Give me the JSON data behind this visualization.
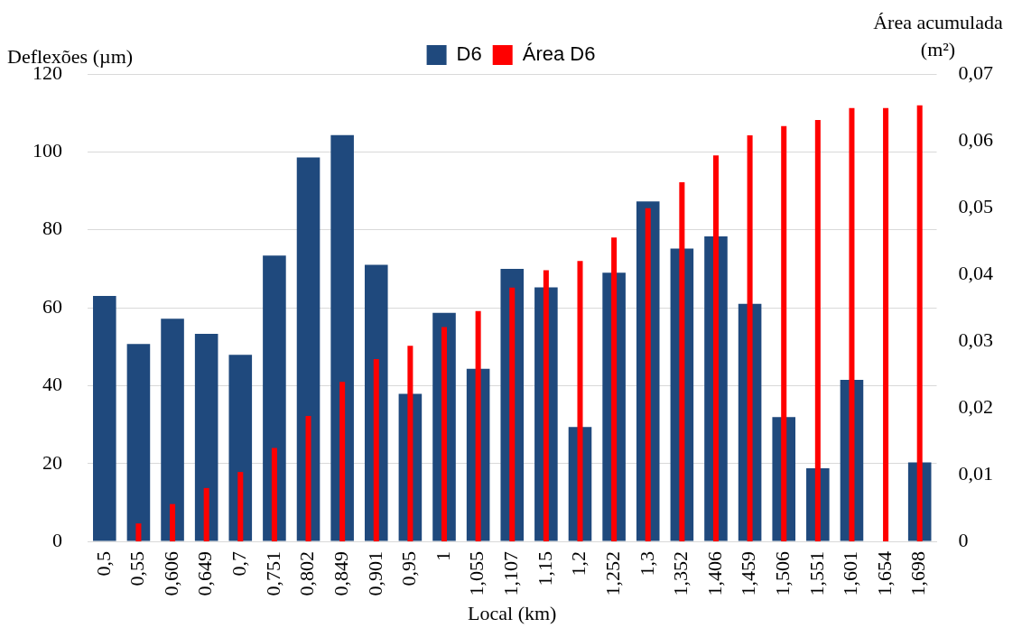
{
  "chart_data": {
    "type": "bar",
    "xlabel": "Local (km)",
    "ylabel": "Deflexões (µm)",
    "y2label": "Área acumulada (m²)",
    "categories": [
      "0,5",
      "0,55",
      "0,606",
      "0,649",
      "0,7",
      "0,751",
      "0,802",
      "0,849",
      "0,901",
      "0,95",
      "1",
      "1,055",
      "1,107",
      "1,15",
      "1,2",
      "1,252",
      "1,3",
      "1,352",
      "1,406",
      "1,459",
      "1,506",
      "1,551",
      "1,601",
      "1,654",
      "1,698"
    ],
    "series": [
      {
        "name": "D6",
        "color": "#1f497d",
        "values": [
          63,
          50.7,
          57.2,
          53.3,
          47.9,
          73.4,
          98.6,
          104.3,
          71,
          37.9,
          58.7,
          44.3,
          70,
          65.2,
          29.4,
          69,
          87.3,
          75.2,
          78.3,
          61,
          31.9,
          18.8,
          41.5,
          null,
          20.3
        ]
      },
      {
        "name": "Área D6",
        "color": "#ff0000",
        "axis": "y2",
        "values": [
          0,
          0.0027,
          0.0056,
          0.008,
          0.0104,
          0.014,
          0.0188,
          0.0239,
          0.0273,
          0.0293,
          0.0321,
          0.0345,
          0.038,
          0.0406,
          0.042,
          0.0455,
          0.0499,
          0.0538,
          0.0578,
          0.0608,
          0.0622,
          0.0631,
          0.0649,
          0.0649,
          0.0653
        ]
      }
    ],
    "ylim": [
      0,
      120
    ],
    "yticks": [
      0,
      20,
      40,
      60,
      80,
      100,
      120
    ],
    "y2lim": [
      0,
      0.07
    ],
    "y2ticks": [
      {
        "value": 0,
        "label": "0"
      },
      {
        "value": 0.01,
        "label": "0,01"
      },
      {
        "value": 0.02,
        "label": "0,02"
      },
      {
        "value": 0.03,
        "label": "0,03"
      },
      {
        "value": 0.04,
        "label": "0,04"
      },
      {
        "value": 0.05,
        "label": "0,05"
      },
      {
        "value": 0.06,
        "label": "0,06"
      },
      {
        "value": 0.07,
        "label": "0,07"
      }
    ],
    "grid": "y",
    "legend": "top"
  }
}
